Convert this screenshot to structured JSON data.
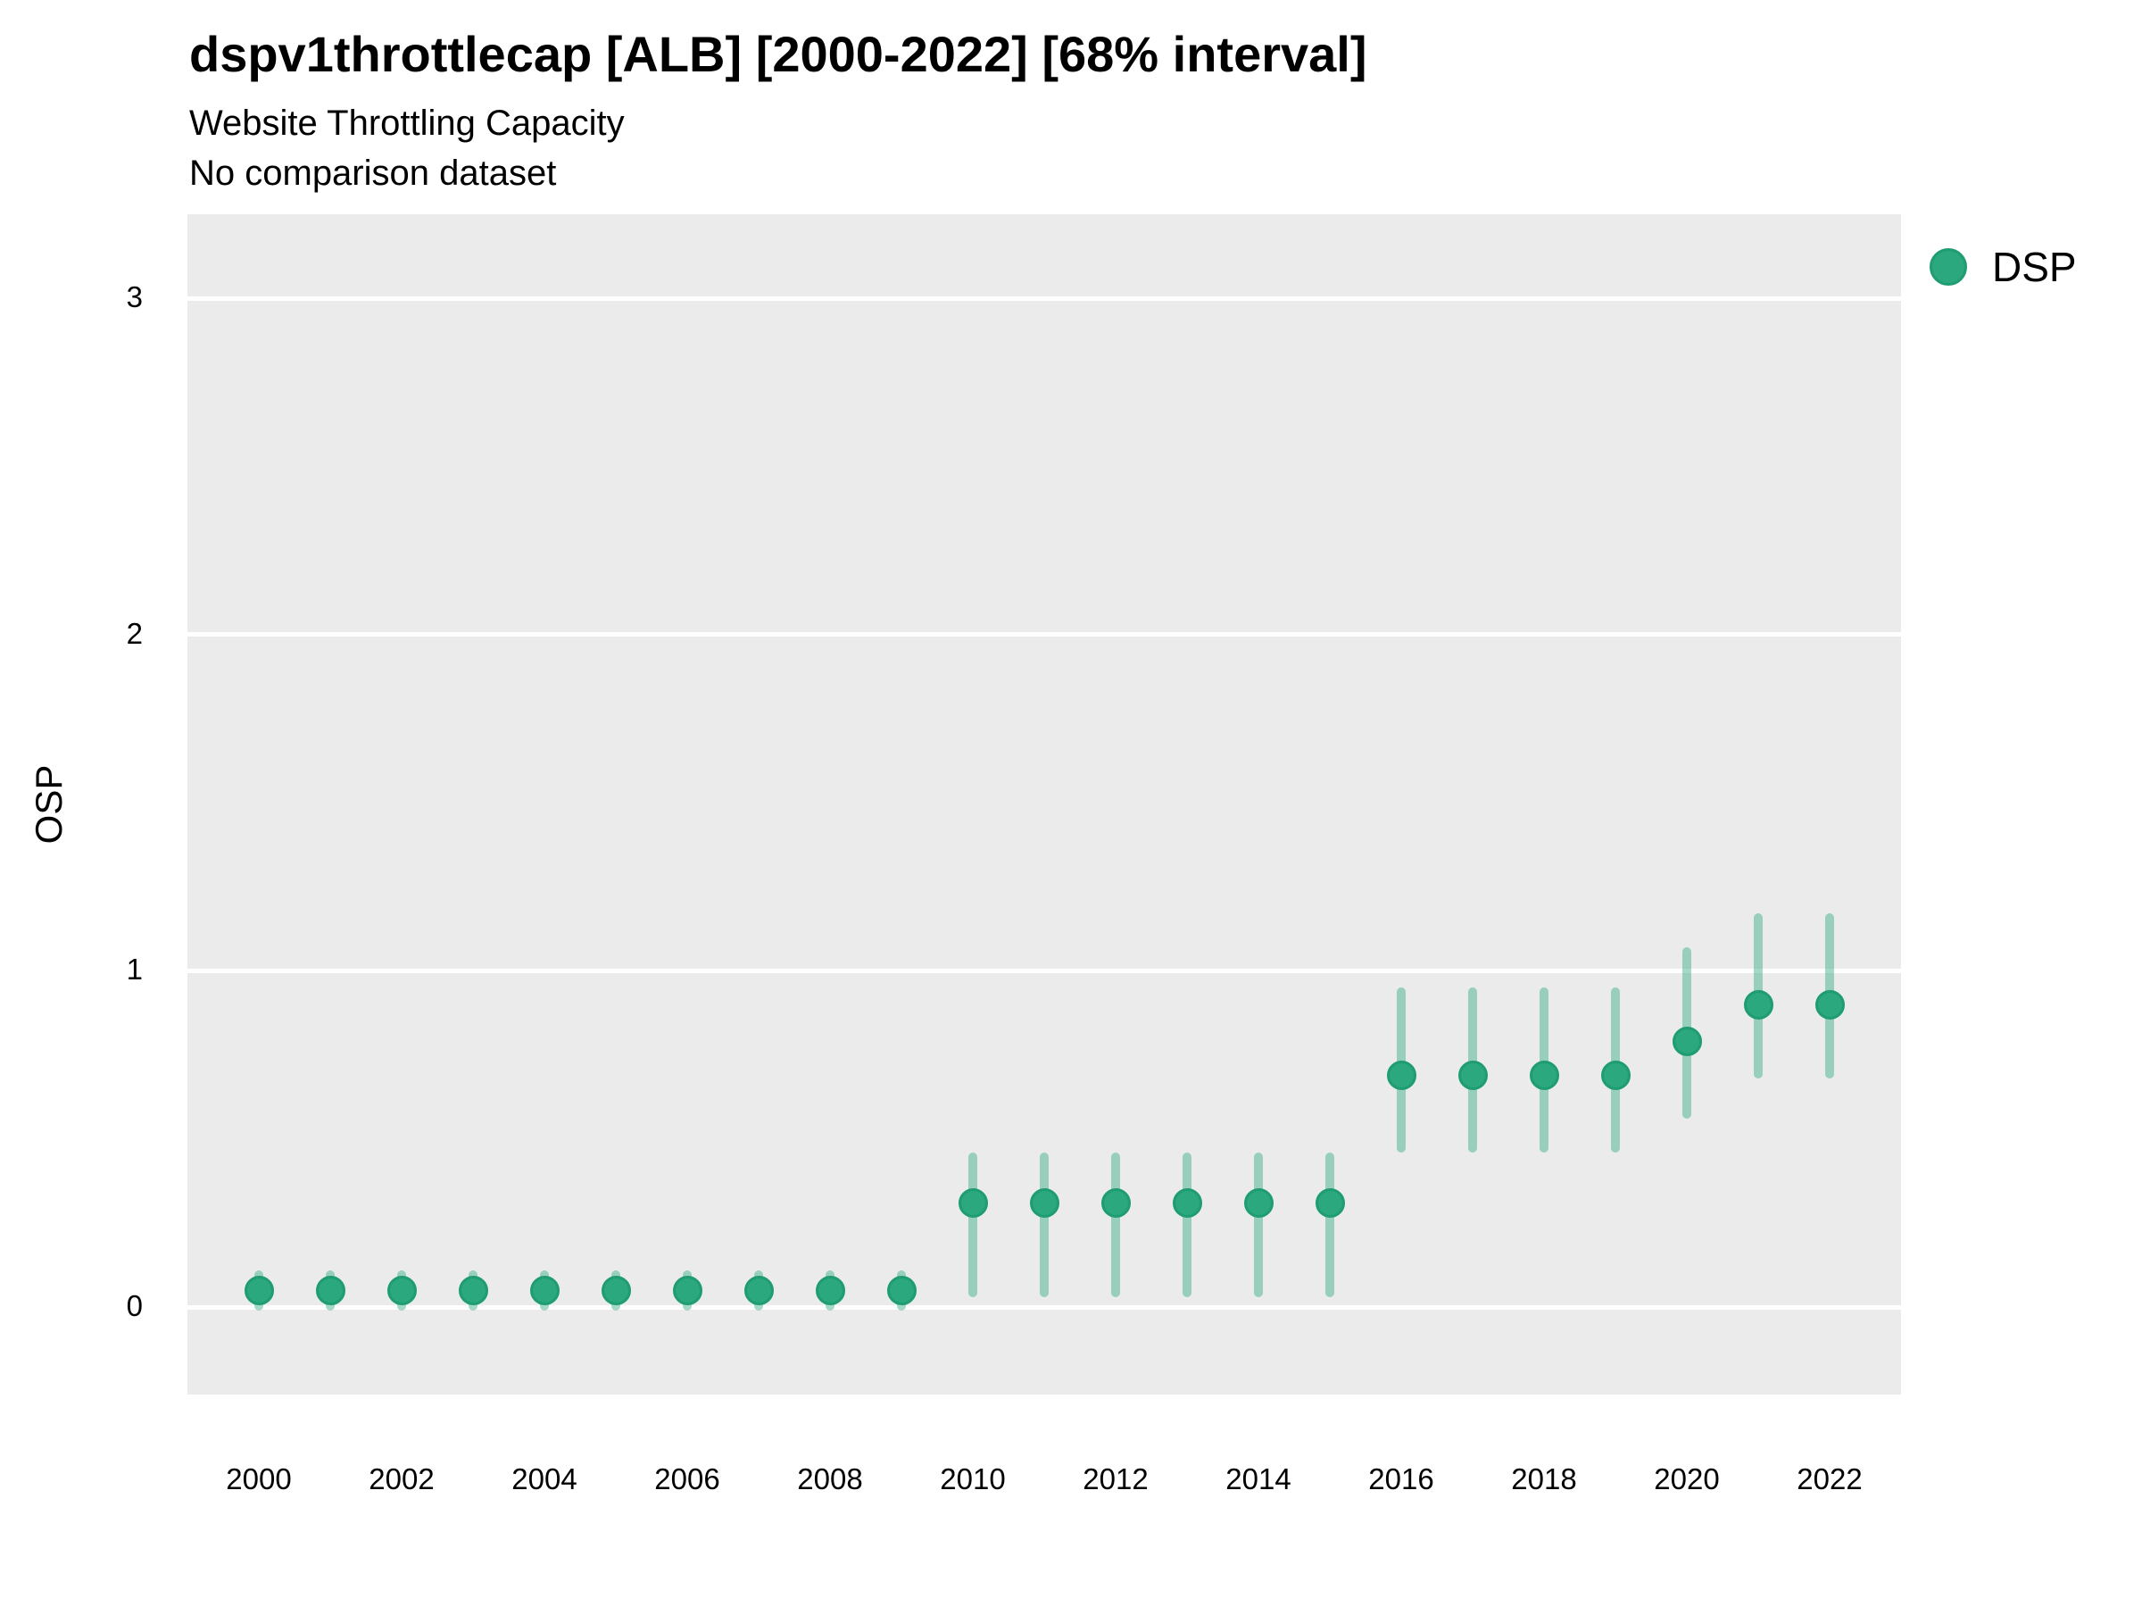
{
  "header": {
    "title": "dspv1throttlecap [ALB] [2000-2022] [68% interval]",
    "subtitle": "Website Throttling Capacity",
    "note": "No comparison dataset"
  },
  "legend": {
    "items": [
      {
        "label": "DSP",
        "color": "#2BA87D",
        "border_color": "#1F9C70"
      }
    ]
  },
  "colors": {
    "point_fill": "#2BA87D",
    "point_border": "#1F9C70",
    "interval_bar": "rgba(42,168,126,0.43)",
    "panel_background": "#EBEBEB",
    "gridline": "#FFFFFF",
    "text": "#000000"
  },
  "chart_data": {
    "type": "scatter",
    "title": "dspv1throttlecap [ALB] [2000-2022] [68% interval]",
    "subtitle": "Website Throttling Capacity",
    "note": "No comparison dataset",
    "xlabel": "",
    "ylabel": "OSP",
    "legend_position": "right",
    "grid": "horizontal-major-only",
    "x_domain": [
      1999,
      2023
    ],
    "y_domain": [
      -0.26,
      3.25
    ],
    "x_ticks": [
      2000,
      2002,
      2004,
      2006,
      2008,
      2010,
      2012,
      2014,
      2016,
      2018,
      2020,
      2022
    ],
    "y_ticks": [
      0,
      1,
      2,
      3
    ],
    "series": [
      {
        "name": "DSP",
        "points": [
          {
            "year": 2000,
            "value": 0.05,
            "low": -0.01,
            "high": 0.11
          },
          {
            "year": 2001,
            "value": 0.05,
            "low": -0.01,
            "high": 0.11
          },
          {
            "year": 2002,
            "value": 0.05,
            "low": -0.01,
            "high": 0.11
          },
          {
            "year": 2003,
            "value": 0.05,
            "low": -0.01,
            "high": 0.11
          },
          {
            "year": 2004,
            "value": 0.05,
            "low": -0.01,
            "high": 0.11
          },
          {
            "year": 2005,
            "value": 0.05,
            "low": -0.01,
            "high": 0.11
          },
          {
            "year": 2006,
            "value": 0.05,
            "low": -0.01,
            "high": 0.11
          },
          {
            "year": 2007,
            "value": 0.05,
            "low": -0.01,
            "high": 0.11
          },
          {
            "year": 2008,
            "value": 0.05,
            "low": -0.01,
            "high": 0.11
          },
          {
            "year": 2009,
            "value": 0.05,
            "low": -0.01,
            "high": 0.11
          },
          {
            "year": 2010,
            "value": 0.31,
            "low": 0.03,
            "high": 0.46
          },
          {
            "year": 2011,
            "value": 0.31,
            "low": 0.03,
            "high": 0.46
          },
          {
            "year": 2012,
            "value": 0.31,
            "low": 0.03,
            "high": 0.46
          },
          {
            "year": 2013,
            "value": 0.31,
            "low": 0.03,
            "high": 0.46
          },
          {
            "year": 2014,
            "value": 0.31,
            "low": 0.03,
            "high": 0.46
          },
          {
            "year": 2015,
            "value": 0.31,
            "low": 0.03,
            "high": 0.46
          },
          {
            "year": 2016,
            "value": 0.69,
            "low": 0.46,
            "high": 0.95
          },
          {
            "year": 2017,
            "value": 0.69,
            "low": 0.46,
            "high": 0.95
          },
          {
            "year": 2018,
            "value": 0.69,
            "low": 0.46,
            "high": 0.95
          },
          {
            "year": 2019,
            "value": 0.69,
            "low": 0.46,
            "high": 0.95
          },
          {
            "year": 2020,
            "value": 0.79,
            "low": 0.56,
            "high": 1.07
          },
          {
            "year": 2021,
            "value": 0.9,
            "low": 0.68,
            "high": 1.17
          },
          {
            "year": 2022,
            "value": 0.9,
            "low": 0.68,
            "high": 1.17
          }
        ]
      }
    ]
  }
}
